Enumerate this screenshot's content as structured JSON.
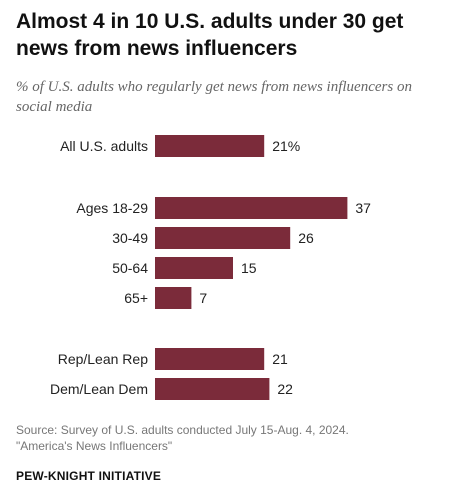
{
  "title": "Almost 4 in 10 U.S. adults under 30 get news from news influencers",
  "subtitle": "% of U.S. adults who regularly get news from news influencers on social media",
  "chart_data": {
    "type": "bar",
    "orientation": "horizontal",
    "categories": [
      "All U.S. adults",
      "Ages 18-29",
      "30-49",
      "50-64",
      "65+",
      "Rep/Lean Rep",
      "Dem/Lean Dem"
    ],
    "values": [
      21,
      37,
      26,
      15,
      7,
      21,
      22
    ],
    "labels": [
      "21%",
      "37",
      "26",
      "15",
      "7",
      "21",
      "22"
    ],
    "groups": [
      [
        0
      ],
      [
        1,
        2,
        3,
        4
      ],
      [
        5,
        6
      ]
    ],
    "bar_color": "#7b2b3a",
    "xlim": [
      0,
      40
    ],
    "grid": false,
    "legend": "none"
  },
  "source": {
    "line1": "Source: Survey of U.S. adults conducted July 15-Aug. 4, 2024.",
    "line2": "\"America's News Influencers\""
  },
  "brand": "PEW-KNIGHT INITIATIVE"
}
